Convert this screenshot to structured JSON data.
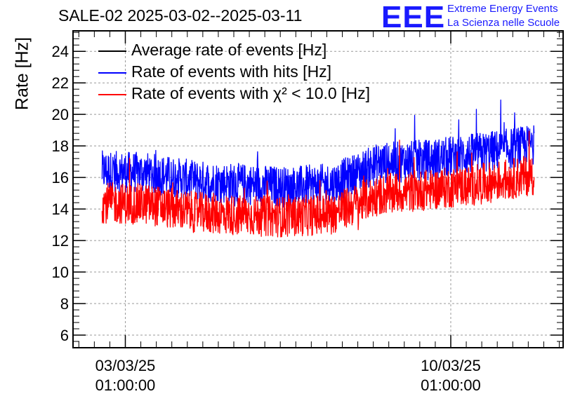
{
  "header": {
    "title": "SALE-02 2025-03-02--2025-03-11",
    "logo_text": "EEE",
    "logo_line1": "Extreme Energy Events",
    "logo_line2": "La Scienza nelle Scuole"
  },
  "colors": {
    "average": "#000000",
    "hits": "#0000ff",
    "chi2": "#ff0000",
    "logo": "#1a1aff",
    "grid": "#999999"
  },
  "chart_data": {
    "type": "line",
    "title": "SALE-02 2025-03-02--2025-03-11",
    "xlabel": "",
    "ylabel": "Rate [Hz]",
    "ylim": [
      5.2,
      25.3
    ],
    "yticks": [
      "6",
      "8",
      "10",
      "12",
      "14",
      "16",
      "18",
      "20",
      "22",
      "24"
    ],
    "xlim": [
      "2025-03-01 22:00",
      "2025-03-12 11:00"
    ],
    "xticks": [
      {
        "date": "03/03/25",
        "time": "01:00:00"
      },
      {
        "date": "10/03/25",
        "time": "01:00:00"
      }
    ],
    "grid": true,
    "legend_position": "top-left",
    "series": [
      {
        "name": "Average rate of events [Hz]",
        "color": "#000000",
        "x": [],
        "values": []
      },
      {
        "name": "Rate of events with hits [Hz]",
        "color": "#0000ff",
        "x": [
          "2025-03-02 13:00",
          "2025-03-03 12:00",
          "2025-03-04 12:00",
          "2025-03-05 12:00",
          "2025-03-06 12:00",
          "2025-03-07 12:00",
          "2025-03-08 12:00",
          "2025-03-09 12:00",
          "2025-03-10 12:00",
          "2025-03-11 12:00",
          "2025-03-11 20:00"
        ],
        "values": [
          16.4,
          16.3,
          15.8,
          15.6,
          15.4,
          15.6,
          16.9,
          17.1,
          17.5,
          17.9,
          18.1
        ]
      },
      {
        "name": "Rate of events with χ² < 10.0 [Hz]",
        "color": "#ff0000",
        "x": [
          "2025-03-02 13:00",
          "2025-03-03 12:00",
          "2025-03-04 12:00",
          "2025-03-05 12:00",
          "2025-03-06 12:00",
          "2025-03-07 12:00",
          "2025-03-08 12:00",
          "2025-03-09 12:00",
          "2025-03-10 12:00",
          "2025-03-11 12:00",
          "2025-03-11 20:00"
        ],
        "values": [
          14.4,
          14.3,
          13.8,
          13.6,
          13.5,
          13.7,
          14.9,
          15.2,
          15.5,
          16.0,
          16.2
        ]
      }
    ]
  }
}
